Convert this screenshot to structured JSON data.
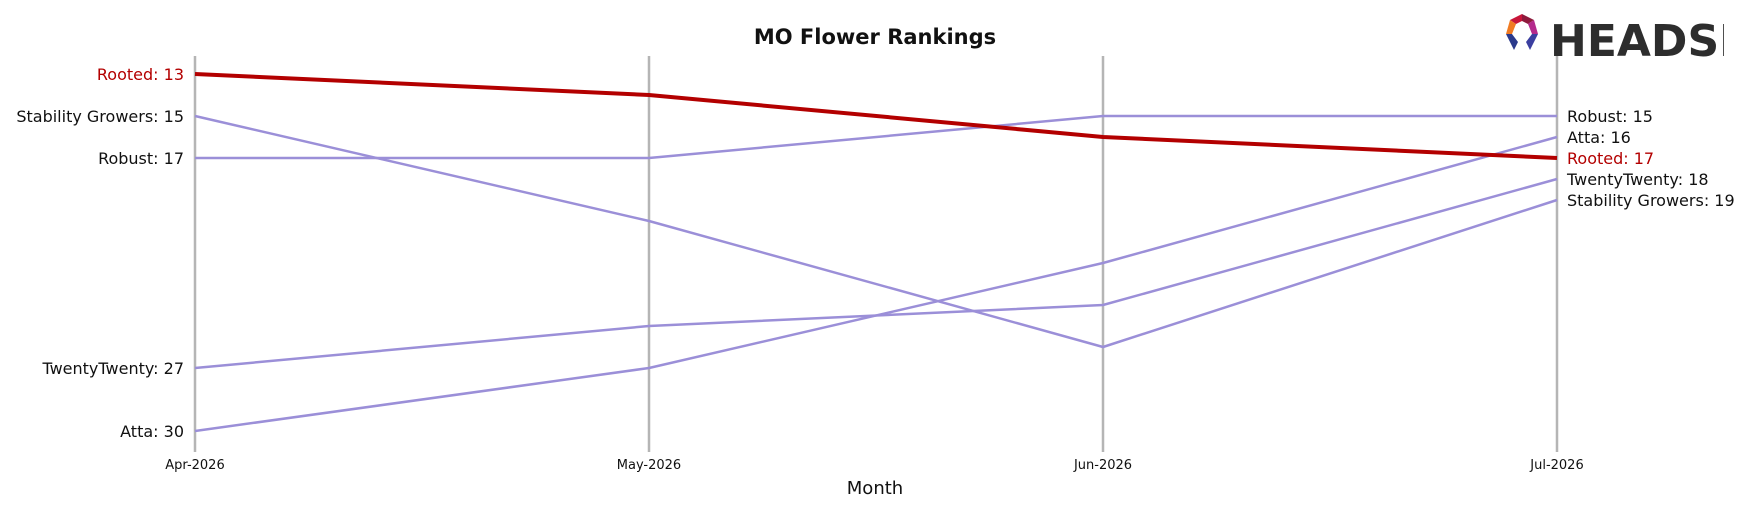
{
  "chart_data": {
    "type": "line",
    "title": "MO Flower Rankings",
    "xlabel": "Month",
    "ylabel": "",
    "x": [
      "Apr-2026",
      "May-2026",
      "Jun-2026",
      "Jul-2026"
    ],
    "ylim": [
      31,
      12
    ],
    "y_inverted": true,
    "grid": "vertical lines at each month",
    "legend": "none (end labels on both sides)",
    "highlight_color": "#b30000",
    "series_color": "#9b8fd8",
    "series": [
      {
        "name": "Rooted",
        "values": [
          13,
          14,
          16,
          17
        ],
        "highlight": true
      },
      {
        "name": "Stability Growers",
        "values": [
          15,
          20,
          26,
          19
        ]
      },
      {
        "name": "Robust",
        "values": [
          17,
          17,
          15,
          15
        ]
      },
      {
        "name": "TwentyTwenty",
        "values": [
          27,
          25,
          24,
          18
        ]
      },
      {
        "name": "Atta",
        "values": [
          30,
          27,
          22,
          16
        ]
      }
    ]
  },
  "brand": {
    "logo_text": "HEADSET"
  }
}
